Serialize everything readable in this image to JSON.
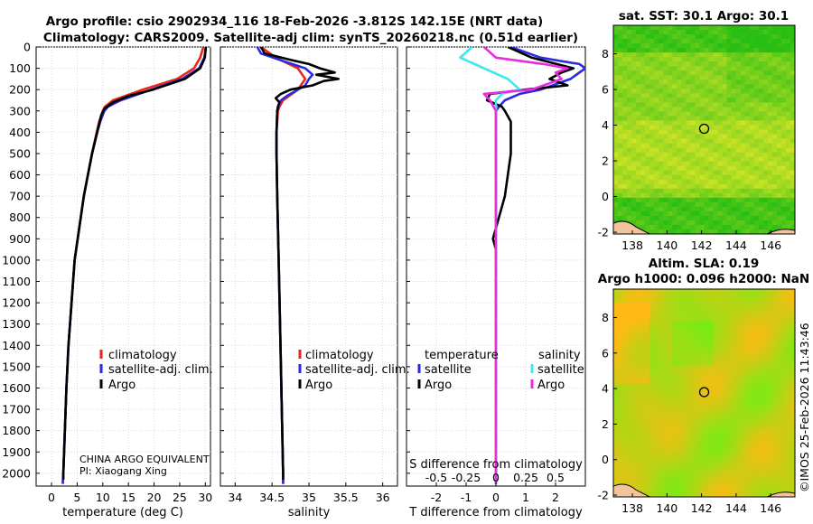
{
  "title": {
    "line1": "Argo profile: csio 2902934_116 18-Feb-2026 -3.812S 142.15E (NRT data)",
    "line2": "Climatology: CARS2009. Satellite-adj clim: synTS_20260218.nc (0.51d earlier)"
  },
  "colors": {
    "climatology": "#e8261b",
    "satellite_adj": "#2a2ae0",
    "argo": "#000000",
    "sal_satellite": "#3fe6ee",
    "sal_argo": "#e82ce0",
    "land": "#f2c49c"
  },
  "chart_data": [
    {
      "type": "line",
      "name": "temperature-profile",
      "xlabel": "temperature (deg C)",
      "ylabel": "",
      "xlim": [
        -3,
        31
      ],
      "ylim": [
        2060,
        0
      ],
      "x_ticks": [
        0,
        5,
        10,
        15,
        20,
        25,
        30
      ],
      "y_ticks": [
        0,
        100,
        200,
        300,
        400,
        500,
        600,
        700,
        800,
        900,
        1000,
        1100,
        1200,
        1300,
        1400,
        1500,
        1600,
        1700,
        1800,
        1900,
        2000
      ],
      "legend": [
        "climatology",
        "satellite-adj. clim.",
        "Argo"
      ],
      "annotations": [
        "CHINA ARGO EQUIVALENT",
        "PI: Xiaogang Xing"
      ],
      "series": [
        {
          "name": "climatology",
          "depth": [
            0,
            50,
            100,
            150,
            200,
            250,
            280,
            300,
            350,
            400,
            500,
            600,
            700,
            800,
            900,
            1000,
            1200,
            1400,
            1600,
            1800,
            2000,
            2050
          ],
          "values": [
            29.6,
            29.0,
            27.8,
            24.5,
            17.8,
            12.0,
            10.4,
            10.0,
            9.3,
            8.8,
            7.9,
            7.1,
            6.3,
            5.7,
            5.1,
            4.5,
            3.9,
            3.3,
            2.9,
            2.6,
            2.3,
            2.2
          ]
        },
        {
          "name": "satellite-adj. clim.",
          "depth": [
            0,
            50,
            100,
            150,
            200,
            250,
            280,
            300,
            350,
            400,
            500,
            600,
            700,
            800,
            900,
            1000,
            1200,
            1400,
            1600,
            1800,
            2000,
            2050
          ],
          "values": [
            30.1,
            29.8,
            28.8,
            25.5,
            19.5,
            13.5,
            11.0,
            10.3,
            9.5,
            8.9,
            7.9,
            7.1,
            6.3,
            5.7,
            5.1,
            4.5,
            3.9,
            3.3,
            2.9,
            2.6,
            2.3,
            2.2
          ]
        },
        {
          "name": "Argo",
          "depth": [
            0,
            50,
            100,
            150,
            200,
            230,
            260,
            290,
            320,
            400,
            500,
            600,
            700,
            800,
            900,
            1000,
            1200,
            1400,
            1600,
            1800,
            2000,
            2030
          ],
          "values": [
            30.1,
            29.9,
            29.0,
            26.0,
            19.8,
            15.0,
            12.0,
            10.3,
            9.7,
            8.9,
            7.9,
            7.1,
            6.3,
            5.7,
            5.1,
            4.5,
            3.9,
            3.3,
            2.9,
            2.6,
            2.3,
            2.3
          ]
        }
      ]
    },
    {
      "type": "line",
      "name": "salinity-profile",
      "xlabel": "salinity",
      "xlim": [
        33.8,
        36.2
      ],
      "ylim": [
        2060,
        0
      ],
      "x_ticks": [
        34,
        34.5,
        35,
        35.5,
        36
      ],
      "legend": [
        "climatology",
        "satellite-adj. clim.",
        "Argo"
      ],
      "series": [
        {
          "name": "climatology",
          "depth": [
            0,
            50,
            100,
            150,
            200,
            250,
            280,
            300,
            400,
            500,
            700,
            1000,
            1500,
            2000,
            2050
          ],
          "values": [
            34.35,
            34.55,
            34.85,
            34.95,
            34.85,
            34.65,
            34.6,
            34.58,
            34.56,
            34.56,
            34.57,
            34.59,
            34.62,
            34.65,
            34.65
          ]
        },
        {
          "name": "satellite-adj. clim.",
          "depth": [
            0,
            30,
            60,
            100,
            130,
            150,
            180,
            200,
            230,
            250,
            280,
            300,
            400,
            500,
            700,
            1000,
            1500,
            2000,
            2050
          ],
          "values": [
            34.3,
            34.35,
            34.6,
            34.95,
            35.05,
            35.0,
            34.95,
            34.85,
            34.7,
            34.62,
            34.58,
            34.57,
            34.56,
            34.56,
            34.57,
            34.59,
            34.62,
            34.65,
            34.65
          ]
        },
        {
          "name": "Argo",
          "depth": [
            0,
            30,
            60,
            80,
            100,
            120,
            130,
            150,
            160,
            180,
            200,
            220,
            240,
            260,
            280,
            300,
            400,
            500,
            700,
            1000,
            1500,
            2000,
            2030
          ],
          "values": [
            34.35,
            34.4,
            34.75,
            35.0,
            35.15,
            35.35,
            35.1,
            35.4,
            35.2,
            35.05,
            34.75,
            34.62,
            34.55,
            34.6,
            34.58,
            34.57,
            34.56,
            34.56,
            34.57,
            34.59,
            34.62,
            34.65,
            34.65
          ]
        }
      ]
    },
    {
      "type": "line",
      "name": "difference-from-climatology",
      "xlabel": "T difference from climatology",
      "xlabel_top": "S difference from climatology",
      "xlim": [
        -3,
        3
      ],
      "ylim": [
        2060,
        0
      ],
      "x_ticks": [
        -2,
        -1,
        0,
        1,
        2
      ],
      "x_ticks_top": [
        "-0.5",
        "-0.25",
        "0",
        "0.25",
        "0.5"
      ],
      "legend_titles": [
        "temperature",
        "salinity"
      ],
      "legend": [
        "satellite",
        "Argo",
        "satellite",
        "Argo"
      ],
      "series": [
        {
          "name": "temperature satellite",
          "depth": [
            0,
            50,
            80,
            100,
            150,
            200,
            220,
            250,
            280,
            300,
            400,
            600,
            800,
            1000,
            1500,
            2000,
            2050
          ],
          "values": [
            0.5,
            1.5,
            2.8,
            3.0,
            2.5,
            1.5,
            0.8,
            0.3,
            0.1,
            0.0,
            0.0,
            0.0,
            0.0,
            0.0,
            0.0,
            0.0,
            0.0
          ]
        },
        {
          "name": "temperature Argo",
          "depth": [
            0,
            50,
            100,
            120,
            150,
            180,
            200,
            220,
            250,
            280,
            300,
            350,
            400,
            500,
            600,
            700,
            800,
            900,
            950,
            1000
          ],
          "values": [
            0.4,
            1.2,
            2.6,
            2.2,
            1.8,
            2.4,
            1.0,
            -0.2,
            -0.3,
            0.2,
            0.3,
            0.5,
            0.5,
            0.5,
            0.4,
            0.3,
            0.1,
            -0.1,
            0.0,
            0.0
          ]
        },
        {
          "name": "salinity satellite",
          "depth": [
            0,
            50,
            100,
            150,
            200,
            220,
            250,
            300,
            400,
            600,
            1000,
            1500,
            2000,
            2050
          ],
          "values": [
            -0.2,
            -0.3,
            -0.1,
            0.1,
            0.2,
            0.05,
            0.0,
            0.0,
            0.0,
            0.0,
            0.0,
            0.0,
            0.0,
            0.0
          ]
        },
        {
          "name": "salinity Argo",
          "depth": [
            0,
            50,
            80,
            100,
            120,
            150,
            180,
            200,
            220,
            250,
            300,
            400,
            600,
            1000,
            1500,
            2000,
            2050
          ],
          "values": [
            -0.1,
            0.0,
            0.4,
            0.6,
            0.5,
            0.55,
            0.4,
            0.3,
            -0.1,
            -0.05,
            0.0,
            0.0,
            0.0,
            0.0,
            0.0,
            0.0,
            0.0
          ]
        }
      ]
    },
    {
      "type": "heatmap",
      "name": "sst-map",
      "title": "sat. SST: 30.1 Argo: 30.1",
      "x_ticks": [
        138,
        140,
        142,
        144,
        146
      ],
      "y_ticks": [
        -2,
        0,
        2,
        4,
        6,
        8
      ],
      "xlim": [
        136.9,
        147.4
      ],
      "ylim": [
        -2.1,
        9.6
      ],
      "marker": {
        "lon": 142.15,
        "lat": 3.8
      }
    },
    {
      "type": "heatmap",
      "name": "sla-map",
      "title": "Altim. SLA: 0.19",
      "title2": "Argo h1000: 0.096 h2000: NaN",
      "x_ticks": [
        138,
        140,
        142,
        144,
        146
      ],
      "y_ticks": [
        -2,
        0,
        2,
        4,
        6,
        8
      ],
      "xlim": [
        136.9,
        147.4
      ],
      "ylim": [
        -2.1,
        9.6
      ],
      "marker": {
        "lon": 142.15,
        "lat": 3.8
      }
    }
  ],
  "timestamp": "©IMOS 25-Feb-2026 11:43:46"
}
